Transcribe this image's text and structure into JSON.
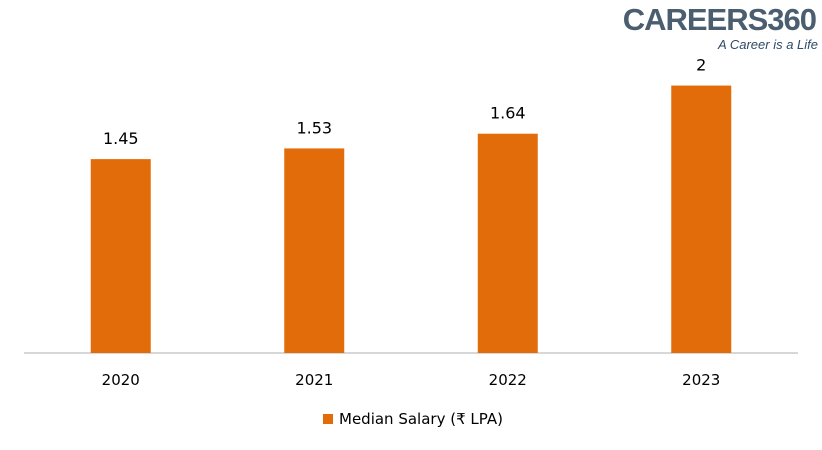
{
  "logo": {
    "brand": "CAREERS360",
    "tagline": "A Career is a Life"
  },
  "chart_data": {
    "type": "bar",
    "categories": [
      "2020",
      "2021",
      "2022",
      "2023"
    ],
    "series": [
      {
        "name": "Median Salary (₹ LPA)",
        "values": [
          1.45,
          1.53,
          1.64,
          2
        ]
      }
    ],
    "data_labels": [
      "1.45",
      "1.53",
      "1.64",
      "2"
    ],
    "ylim": [
      0,
      2.64
    ],
    "grid": false,
    "legend_position": "bottom",
    "bar_color": "#E36C0A"
  }
}
